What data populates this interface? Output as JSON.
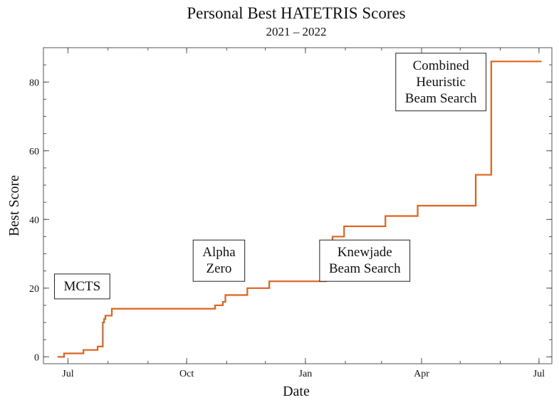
{
  "chart_data": {
    "type": "line",
    "step": true,
    "title": "Personal Best HATETRIS Scores",
    "subtitle": "2021 – 2022",
    "xlabel": "Date",
    "ylabel": "Best Score",
    "xlim": [
      "2021-06-12",
      "2022-07-11"
    ],
    "ylim": [
      -2,
      90
    ],
    "grid": false,
    "x_ticks": [
      {
        "date": "2021-07-01",
        "label": "Jul"
      },
      {
        "date": "2021-10-01",
        "label": "Oct"
      },
      {
        "date": "2022-01-01",
        "label": "Jan"
      },
      {
        "date": "2022-04-01",
        "label": "Apr"
      },
      {
        "date": "2022-07-01",
        "label": "Jul"
      }
    ],
    "y_ticks": [
      0,
      20,
      40,
      60,
      80
    ],
    "series": [
      {
        "color": "#e0621f",
        "points": [
          [
            "2021-06-23",
            0
          ],
          [
            "2021-06-28",
            1
          ],
          [
            "2021-07-13",
            2
          ],
          [
            "2021-07-24",
            3
          ],
          [
            "2021-07-28",
            10
          ],
          [
            "2021-07-29",
            11
          ],
          [
            "2021-07-30",
            12
          ],
          [
            "2021-08-04",
            14
          ],
          [
            "2021-10-23",
            15
          ],
          [
            "2021-10-29",
            16
          ],
          [
            "2021-10-31",
            18
          ],
          [
            "2021-11-17",
            20
          ],
          [
            "2021-12-04",
            22
          ],
          [
            "2022-01-17",
            23
          ],
          [
            "2022-01-18",
            24
          ],
          [
            "2022-01-20",
            26
          ],
          [
            "2022-01-21",
            30
          ],
          [
            "2022-01-22",
            35
          ],
          [
            "2022-01-31",
            38
          ],
          [
            "2022-03-04",
            41
          ],
          [
            "2022-03-29",
            44
          ],
          [
            "2022-05-13",
            53
          ],
          [
            "2022-05-25",
            86
          ],
          [
            "2022-07-03",
            86
          ]
        ]
      }
    ],
    "annotations": [
      {
        "lines": [
          "MCTS"
        ],
        "x": "2021-07-12",
        "y": 20.5
      },
      {
        "lines": [
          "Alpha",
          "Zero"
        ],
        "x": "2021-10-26",
        "y": 28
      },
      {
        "lines": [
          "Knewjade",
          "Beam Search"
        ],
        "x": "2022-02-16",
        "y": 28
      },
      {
        "lines": [
          "Combined",
          "Heuristic",
          "Beam Search"
        ],
        "x": "2022-04-16",
        "y": 80
      }
    ]
  }
}
